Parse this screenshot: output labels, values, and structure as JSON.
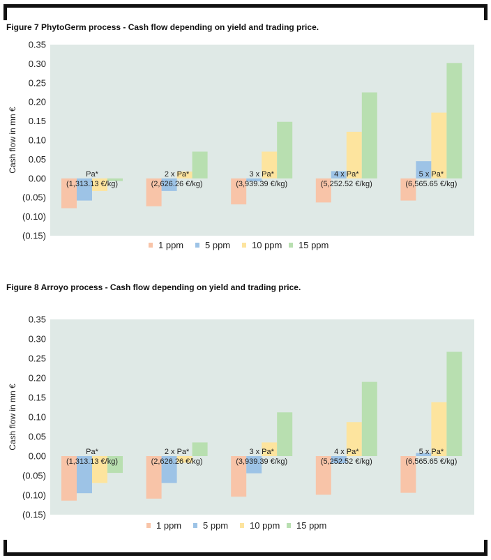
{
  "figures": [
    {
      "title": "Figure 7 PhytoGerm process - Cash flow depending on yield and trading price.",
      "chart_data": {
        "type": "bar",
        "ylabel": "Cash flow in mn €",
        "xlabel": "",
        "ylim": [
          -0.15,
          0.35
        ],
        "yticks": [
          -0.15,
          -0.1,
          -0.05,
          0.0,
          0.05,
          0.1,
          0.15,
          0.2,
          0.25,
          0.3,
          0.35
        ],
        "ytick_labels": [
          "(0.15)",
          "(0.10)",
          "(0.05)",
          "0.00",
          "0.05",
          "0.10",
          "0.15",
          "0.20",
          "0.25",
          "0.30",
          "0.35"
        ],
        "grid": false,
        "legend_position": "bottom",
        "categories": [
          {
            "line1": "Pa*",
            "line2": "(1,313.13 €/kg)"
          },
          {
            "line1": "2 x Pa*",
            "line2": "(2,626.26 €/kg)"
          },
          {
            "line1": "3 x Pa*",
            "line2": "(3,939.39 €/kg)"
          },
          {
            "line1": "4 x Pa*",
            "line2": "(5,252.52 €/kg)"
          },
          {
            "line1": "5 x Pa*",
            "line2": "(6,565.65 €/kg)"
          }
        ],
        "series": [
          {
            "name": "1 ppm",
            "color": "#f8c4a8",
            "values": [
              -0.078,
              -0.073,
              -0.068,
              -0.063,
              -0.058
            ]
          },
          {
            "name": "5 ppm",
            "color": "#9dc3e6",
            "values": [
              -0.058,
              -0.033,
              -0.008,
              0.019,
              0.045
            ]
          },
          {
            "name": "10 ppm",
            "color": "#fde49e",
            "values": [
              -0.033,
              0.018,
              0.07,
              0.122,
              0.172
            ]
          },
          {
            "name": "15 ppm",
            "color": "#b8dfb0",
            "values": [
              -0.007,
              0.07,
              0.148,
              0.225,
              0.302
            ]
          }
        ]
      }
    },
    {
      "title": "Figure 8 Arroyo process - Cash flow depending on yield and trading price.",
      "chart_data": {
        "type": "bar",
        "ylabel": "Cash flow in mn €",
        "xlabel": "",
        "ylim": [
          -0.15,
          0.35
        ],
        "yticks": [
          -0.15,
          -0.1,
          -0.05,
          0.0,
          0.05,
          0.1,
          0.15,
          0.2,
          0.25,
          0.3,
          0.35
        ],
        "ytick_labels": [
          "(0.15)",
          "(0.10)",
          "(0.05)",
          "0.00",
          "0.05",
          "0.10",
          "0.15",
          "0.20",
          "0.25",
          "0.30",
          "0.35"
        ],
        "grid": false,
        "legend_position": "bottom",
        "categories": [
          {
            "line1": "Pa*",
            "line2": "(1,313.13 €/kg)"
          },
          {
            "line1": "2 x Pa*",
            "line2": "(2,626.26 €/kg)"
          },
          {
            "line1": "3 x Pa*",
            "line2": "(3,939.39 €/kg)"
          },
          {
            "line1": "4 x Pa*",
            "line2": "(5,252.52 €/kg)"
          },
          {
            "line1": "5 x Pa*",
            "line2": "(6,565.65 €/kg)"
          }
        ],
        "series": [
          {
            "name": "1 ppm",
            "color": "#f8c4a8",
            "values": [
              -0.114,
              -0.109,
              -0.104,
              -0.099,
              -0.094
            ]
          },
          {
            "name": "5 ppm",
            "color": "#9dc3e6",
            "values": [
              -0.095,
              -0.069,
              -0.044,
              -0.018,
              0.008
            ]
          },
          {
            "name": "10 ppm",
            "color": "#fde49e",
            "values": [
              -0.069,
              -0.017,
              0.035,
              0.087,
              0.138
            ]
          },
          {
            "name": "15 ppm",
            "color": "#b8dfb0",
            "values": [
              -0.043,
              0.035,
              0.112,
              0.19,
              0.267
            ]
          }
        ]
      }
    }
  ]
}
